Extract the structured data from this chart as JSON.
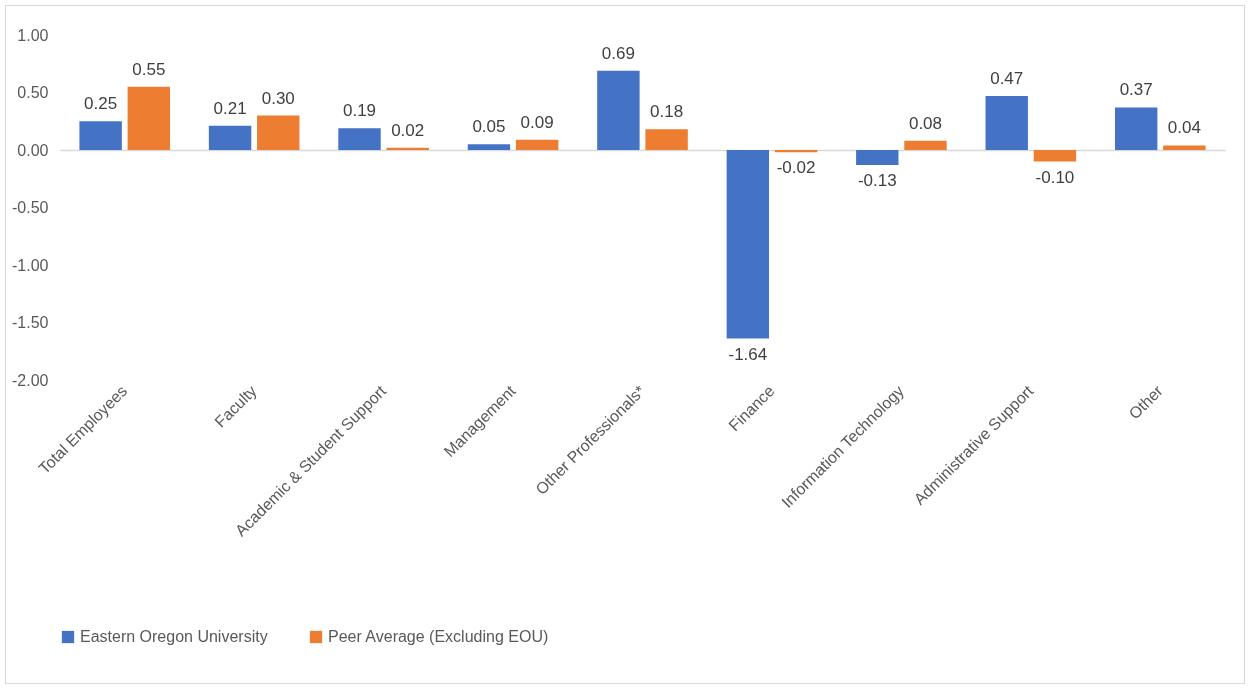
{
  "chart_data": {
    "type": "bar",
    "categories": [
      "Total Employees",
      "Faculty",
      "Academic & Student Support",
      "Management",
      "Other Professionals*",
      "Finance",
      "Information Technology",
      "Administrative Support",
      "Other"
    ],
    "series": [
      {
        "name": "Eastern Oregon University",
        "color": "#4472c4",
        "values": [
          0.25,
          0.21,
          0.19,
          0.05,
          0.69,
          -1.64,
          -0.13,
          0.47,
          0.37
        ],
        "value_labels": [
          "0.25",
          "0.21",
          "0.19",
          "0.05",
          "0.69",
          "-1.64",
          "-0.13",
          "0.47",
          "0.37"
        ]
      },
      {
        "name": "Peer Average (Excluding EOU)",
        "color": "#ed7d31",
        "values": [
          0.55,
          0.3,
          0.02,
          0.09,
          0.18,
          -0.02,
          0.08,
          -0.1,
          0.04
        ],
        "value_labels": [
          "0.55",
          "0.30",
          "0.02",
          "0.09",
          "0.18",
          "-0.02",
          "0.08",
          "-0.10",
          "0.04"
        ]
      }
    ],
    "ylim": [
      -2,
      1
    ],
    "yticks": [
      {
        "value": -2,
        "label": "-2.00"
      },
      {
        "value": -1.5,
        "label": "-1.50"
      },
      {
        "value": -1,
        "label": "-1.00"
      },
      {
        "value": -0.5,
        "label": "-0.50"
      },
      {
        "value": 0,
        "label": "0.00"
      },
      {
        "value": 0.5,
        "label": "0.50"
      },
      {
        "value": 1,
        "label": "1.00"
      }
    ],
    "legend": "bottom"
  }
}
